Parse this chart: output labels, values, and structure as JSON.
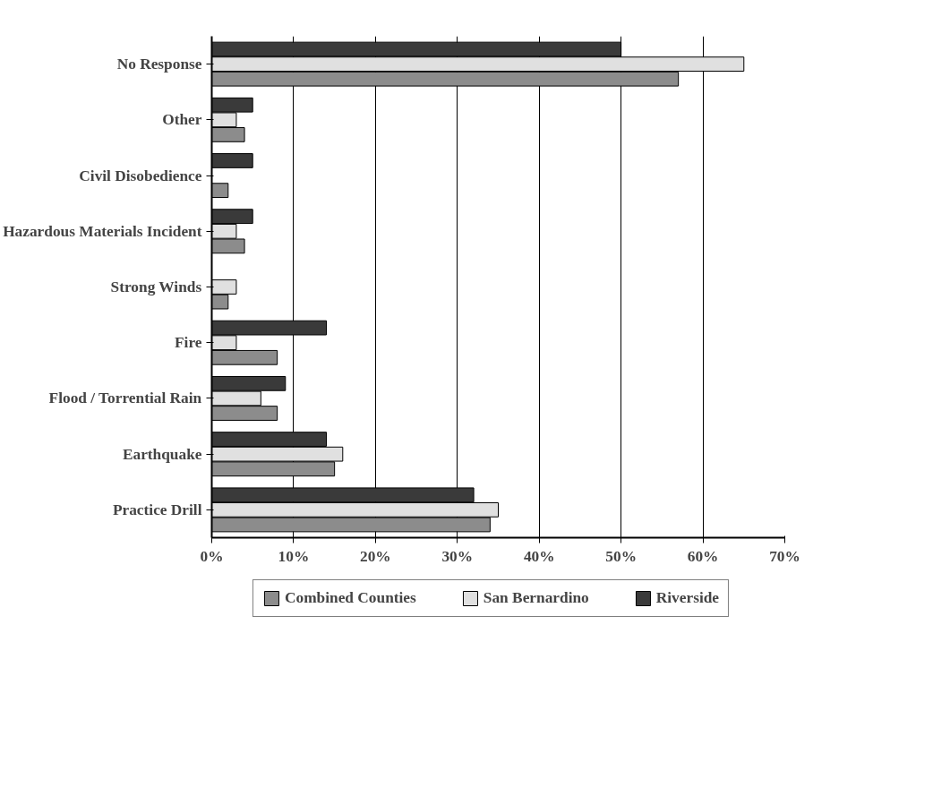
{
  "chart_data": {
    "type": "bar",
    "orientation": "horizontal",
    "categories": [
      "No Response",
      "Other",
      "Civil Disobedience",
      "Hazardous Materials Incident",
      "Strong Winds",
      "Fire",
      "Flood / Torrential Rain",
      "Earthquake",
      "Practice Drill"
    ],
    "series": [
      {
        "name": "Combined Counties",
        "color": "#8c8c8c",
        "values": [
          57,
          4,
          2,
          4,
          2,
          8,
          8,
          15,
          34
        ]
      },
      {
        "name": "San Bernardino",
        "color": "#e0e0e0",
        "values": [
          65,
          3,
          null,
          3,
          3,
          3,
          6,
          16,
          35
        ]
      },
      {
        "name": "Riverside",
        "color": "#3a3a3a",
        "values": [
          50,
          5,
          5,
          5,
          null,
          14,
          9,
          14,
          32
        ]
      }
    ],
    "xlim": [
      0,
      70
    ],
    "xticks": [
      {
        "value": 0,
        "label": "0%"
      },
      {
        "value": 10,
        "label": "10%"
      },
      {
        "value": 20,
        "label": "20%"
      },
      {
        "value": 30,
        "label": "30%"
      },
      {
        "value": 40,
        "label": "40%"
      },
      {
        "value": 50,
        "label": "50%"
      },
      {
        "value": 60,
        "label": "60%"
      },
      {
        "value": 70,
        "label": "70%"
      }
    ],
    "grid": "x",
    "legend": "bottom"
  }
}
